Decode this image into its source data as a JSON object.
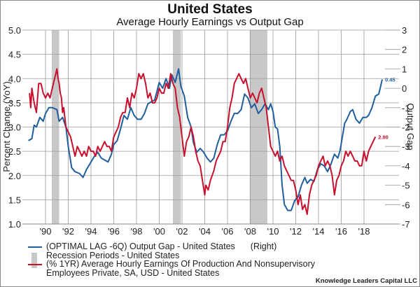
{
  "chart_data": {
    "type": "line",
    "title": "United States",
    "subtitle": "Average Hourly Earnings vs Output Gap",
    "xlabel": "",
    "ylabel": "Percent Change (YoY)",
    "y2label": "Output Gap",
    "x_range": [
      1988.5,
      2020.0
    ],
    "ylim": [
      1.0,
      5.0
    ],
    "y2lim": [
      -7,
      3
    ],
    "yticks": [
      "1.0",
      "1.5",
      "2.0",
      "2.5",
      "3.0",
      "3.5",
      "4.0",
      "4.5",
      "5.0"
    ],
    "y2ticks": [
      "-7",
      "-6",
      "-5",
      "-4",
      "-3",
      "-2",
      "-1",
      "0",
      "1",
      "2",
      "3"
    ],
    "xticks": [
      {
        "year": 1990,
        "label": "'90"
      },
      {
        "year": 1992,
        "label": "'92"
      },
      {
        "year": 1994,
        "label": "'94"
      },
      {
        "year": 1996,
        "label": "'96"
      },
      {
        "year": 1998,
        "label": "'98"
      },
      {
        "year": 2000,
        "label": "'00"
      },
      {
        "year": 2002,
        "label": "'02"
      },
      {
        "year": 2004,
        "label": "'04"
      },
      {
        "year": 2006,
        "label": "'06"
      },
      {
        "year": 2008,
        "label": "'08"
      },
      {
        "year": 2010,
        "label": "'10"
      },
      {
        "year": 2012,
        "label": "'12"
      },
      {
        "year": 2014,
        "label": "'14"
      },
      {
        "year": 2016,
        "label": "'16"
      },
      {
        "year": 2018,
        "label": "'18"
      }
    ],
    "grid": true,
    "recessions": [
      [
        1990.55,
        1991.2
      ],
      [
        2001.2,
        2001.9
      ],
      [
        2007.95,
        2009.5
      ]
    ],
    "series": [
      {
        "name": "(OPTIMAL LAG -6Q) Output Gap - United States",
        "axis": "right",
        "color": "#1f5f9e",
        "end_label": "0.45",
        "points": [
          [
            1988.5,
            -2.7
          ],
          [
            1988.8,
            -2.6
          ],
          [
            1989.0,
            -1.9
          ],
          [
            1989.2,
            -2.0
          ],
          [
            1989.5,
            -1.5
          ],
          [
            1989.8,
            -1.7
          ],
          [
            1990.0,
            -1.3
          ],
          [
            1990.3,
            -1.0
          ],
          [
            1990.6,
            -1.0
          ],
          [
            1991.0,
            -1.1
          ],
          [
            1991.2,
            -1.7
          ],
          [
            1991.5,
            -1.5
          ],
          [
            1991.8,
            -2.0
          ],
          [
            1992.0,
            -3.0
          ],
          [
            1992.3,
            -4.1
          ],
          [
            1992.6,
            -4.3
          ],
          [
            1993.0,
            -4.4
          ],
          [
            1993.3,
            -4.6
          ],
          [
            1993.6,
            -4.2
          ],
          [
            1994.0,
            -3.8
          ],
          [
            1994.3,
            -3.5
          ],
          [
            1994.6,
            -3.3
          ],
          [
            1994.9,
            -3.6
          ],
          [
            1995.2,
            -3.7
          ],
          [
            1995.5,
            -3.8
          ],
          [
            1995.8,
            -3.4
          ],
          [
            1996.0,
            -2.9
          ],
          [
            1996.3,
            -2.7
          ],
          [
            1996.6,
            -2.1
          ],
          [
            1996.9,
            -1.4
          ],
          [
            1997.2,
            -1.6
          ],
          [
            1997.5,
            -1.0
          ],
          [
            1997.8,
            -1.4
          ],
          [
            1998.1,
            -1.6
          ],
          [
            1998.4,
            -1.6
          ],
          [
            1998.7,
            -1.3
          ],
          [
            1999.0,
            -0.8
          ],
          [
            1999.3,
            -0.7
          ],
          [
            1999.6,
            -0.6
          ],
          [
            2000.0,
            0.3
          ],
          [
            2000.3,
            0.0
          ],
          [
            2000.6,
            0.5
          ],
          [
            2000.9,
            0.0
          ],
          [
            2001.1,
            0.7
          ],
          [
            2001.4,
            0.3
          ],
          [
            2001.7,
            1.0
          ],
          [
            2001.9,
            0.1
          ],
          [
            2002.2,
            -0.4
          ],
          [
            2002.5,
            -1.5
          ],
          [
            2002.8,
            -2.0
          ],
          [
            2003.0,
            -2.8
          ],
          [
            2003.3,
            -3.3
          ],
          [
            2003.6,
            -3.1
          ],
          [
            2003.9,
            -3.3
          ],
          [
            2004.2,
            -3.6
          ],
          [
            2004.5,
            -3.8
          ],
          [
            2004.8,
            -3.6
          ],
          [
            2005.1,
            -2.9
          ],
          [
            2005.4,
            -2.4
          ],
          [
            2005.7,
            -2.4
          ],
          [
            2006.0,
            -2.2
          ],
          [
            2006.3,
            -1.7
          ],
          [
            2006.6,
            -1.3
          ],
          [
            2006.9,
            -1.3
          ],
          [
            2007.2,
            -1.1
          ],
          [
            2007.5,
            -0.3
          ],
          [
            2007.8,
            -0.5
          ],
          [
            2008.1,
            -1.0
          ],
          [
            2008.4,
            -0.8
          ],
          [
            2008.7,
            -1.3
          ],
          [
            2009.0,
            -1.1
          ],
          [
            2009.3,
            -0.8
          ],
          [
            2009.6,
            -1.1
          ],
          [
            2009.8,
            -0.8
          ],
          [
            2010.0,
            -1.2
          ],
          [
            2010.2,
            -2.0
          ],
          [
            2010.4,
            -2.1
          ],
          [
            2010.6,
            -3.0
          ],
          [
            2010.8,
            -5.0
          ],
          [
            2011.0,
            -6.0
          ],
          [
            2011.3,
            -6.3
          ],
          [
            2011.6,
            -6.3
          ],
          [
            2011.9,
            -5.8
          ],
          [
            2012.2,
            -5.6
          ],
          [
            2012.5,
            -5.0
          ],
          [
            2012.8,
            -4.6
          ],
          [
            2013.0,
            -4.9
          ],
          [
            2013.3,
            -4.7
          ],
          [
            2013.6,
            -4.8
          ],
          [
            2013.9,
            -4.2
          ],
          [
            2014.2,
            -3.9
          ],
          [
            2014.5,
            -4.0
          ],
          [
            2014.8,
            -4.3
          ],
          [
            2015.1,
            -3.9
          ],
          [
            2015.4,
            -3.4
          ],
          [
            2015.7,
            -3.6
          ],
          [
            2015.9,
            -3.2
          ],
          [
            2016.1,
            -2.5
          ],
          [
            2016.3,
            -1.8
          ],
          [
            2016.5,
            -1.6
          ],
          [
            2016.8,
            -1.2
          ],
          [
            2017.0,
            -1.1
          ],
          [
            2017.3,
            -1.6
          ],
          [
            2017.6,
            -1.8
          ],
          [
            2017.9,
            -1.5
          ],
          [
            2018.2,
            -1.5
          ],
          [
            2018.4,
            -1.4
          ],
          [
            2018.7,
            -1.0
          ],
          [
            2019.0,
            -0.4
          ],
          [
            2019.3,
            -0.3
          ],
          [
            2019.6,
            0.45
          ]
        ]
      },
      {
        "name": "(% 1YR) Average Hourly Earnings Of Production And Nonsupervisory Employees Private, SA, USD - United States",
        "axis": "left",
        "color": "#c8102e",
        "end_label": "2.80",
        "points": [
          [
            1988.6,
            3.7
          ],
          [
            1988.7,
            3.4
          ],
          [
            1988.8,
            3.8
          ],
          [
            1989.0,
            3.5
          ],
          [
            1989.2,
            3.3
          ],
          [
            1989.4,
            3.9
          ],
          [
            1989.6,
            3.9
          ],
          [
            1989.8,
            3.7
          ],
          [
            1990.0,
            3.6
          ],
          [
            1990.2,
            3.7
          ],
          [
            1990.4,
            3.6
          ],
          [
            1990.6,
            3.8
          ],
          [
            1990.8,
            4.0
          ],
          [
            1991.0,
            4.2
          ],
          [
            1991.1,
            4.0
          ],
          [
            1991.2,
            3.9
          ],
          [
            1991.3,
            3.7
          ],
          [
            1991.4,
            3.6
          ],
          [
            1991.5,
            3.3
          ],
          [
            1991.6,
            3.4
          ],
          [
            1991.8,
            3.0
          ],
          [
            1992.0,
            2.9
          ],
          [
            1992.2,
            2.8
          ],
          [
            1992.4,
            2.6
          ],
          [
            1992.6,
            2.4
          ],
          [
            1992.8,
            2.6
          ],
          [
            1993.0,
            2.5
          ],
          [
            1993.2,
            2.4
          ],
          [
            1993.4,
            2.5
          ],
          [
            1993.6,
            2.4
          ],
          [
            1993.8,
            2.6
          ],
          [
            1994.0,
            2.5
          ],
          [
            1994.2,
            2.5
          ],
          [
            1994.4,
            2.4
          ],
          [
            1994.6,
            2.6
          ],
          [
            1994.8,
            2.5
          ],
          [
            1995.0,
            2.6
          ],
          [
            1995.2,
            2.7
          ],
          [
            1995.4,
            2.6
          ],
          [
            1995.6,
            2.6
          ],
          [
            1995.8,
            2.5
          ],
          [
            1996.0,
            2.8
          ],
          [
            1996.2,
            2.9
          ],
          [
            1996.4,
            3.0
          ],
          [
            1996.6,
            3.2
          ],
          [
            1996.8,
            3.3
          ],
          [
            1997.0,
            3.3
          ],
          [
            1997.2,
            3.6
          ],
          [
            1997.4,
            3.4
          ],
          [
            1997.6,
            3.7
          ],
          [
            1997.8,
            3.6
          ],
          [
            1998.0,
            3.8
          ],
          [
            1998.2,
            4.1
          ],
          [
            1998.4,
            4.0
          ],
          [
            1998.6,
            4.1
          ],
          [
            1998.8,
            3.9
          ],
          [
            1999.0,
            3.6
          ],
          [
            1999.2,
            3.7
          ],
          [
            1999.4,
            3.5
          ],
          [
            1999.6,
            3.5
          ],
          [
            1999.8,
            3.6
          ],
          [
            2000.0,
            3.8
          ],
          [
            2000.2,
            3.7
          ],
          [
            2000.4,
            3.7
          ],
          [
            2000.6,
            3.9
          ],
          [
            2000.8,
            3.8
          ],
          [
            2001.0,
            4.1
          ],
          [
            2001.2,
            3.9
          ],
          [
            2001.4,
            3.8
          ],
          [
            2001.6,
            3.4
          ],
          [
            2001.8,
            3.2
          ],
          [
            2002.0,
            2.8
          ],
          [
            2002.2,
            2.4
          ],
          [
            2002.4,
            2.7
          ],
          [
            2002.6,
            2.8
          ],
          [
            2002.8,
            3.0
          ],
          [
            2003.0,
            2.8
          ],
          [
            2003.2,
            2.5
          ],
          [
            2003.4,
            2.3
          ],
          [
            2003.6,
            2.2
          ],
          [
            2003.8,
            1.9
          ],
          [
            2004.0,
            1.6
          ],
          [
            2004.1,
            1.8
          ],
          [
            2004.3,
            1.7
          ],
          [
            2004.5,
            1.9
          ],
          [
            2004.8,
            2.1
          ],
          [
            2005.0,
            2.3
          ],
          [
            2005.2,
            2.4
          ],
          [
            2005.4,
            2.5
          ],
          [
            2005.6,
            2.7
          ],
          [
            2005.8,
            2.7
          ],
          [
            2006.0,
            3.0
          ],
          [
            2006.2,
            3.4
          ],
          [
            2006.4,
            3.6
          ],
          [
            2006.6,
            3.9
          ],
          [
            2006.8,
            4.0
          ],
          [
            2007.0,
            4.1
          ],
          [
            2007.2,
            4.0
          ],
          [
            2007.4,
            3.9
          ],
          [
            2007.6,
            4.0
          ],
          [
            2007.8,
            3.8
          ],
          [
            2008.0,
            3.6
          ],
          [
            2008.2,
            3.7
          ],
          [
            2008.4,
            3.6
          ],
          [
            2008.6,
            3.5
          ],
          [
            2008.8,
            3.7
          ],
          [
            2009.0,
            3.8
          ],
          [
            2009.2,
            3.6
          ],
          [
            2009.4,
            3.4
          ],
          [
            2009.6,
            3.0
          ],
          [
            2009.8,
            2.6
          ],
          [
            2010.0,
            2.5
          ],
          [
            2010.2,
            2.4
          ],
          [
            2010.4,
            2.5
          ],
          [
            2010.6,
            2.3
          ],
          [
            2010.8,
            2.4
          ],
          [
            2011.0,
            2.2
          ],
          [
            2011.2,
            2.1
          ],
          [
            2011.4,
            2.0
          ],
          [
            2011.6,
            1.9
          ],
          [
            2011.8,
            1.9
          ],
          [
            2012.0,
            1.7
          ],
          [
            2012.2,
            1.4
          ],
          [
            2012.4,
            1.6
          ],
          [
            2012.6,
            1.3
          ],
          [
            2012.8,
            1.4
          ],
          [
            2013.0,
            1.2
          ],
          [
            2013.2,
            1.6
          ],
          [
            2013.4,
            1.8
          ],
          [
            2013.6,
            1.9
          ],
          [
            2013.8,
            2.0
          ],
          [
            2014.0,
            2.2
          ],
          [
            2014.2,
            2.3
          ],
          [
            2014.4,
            2.4
          ],
          [
            2014.6,
            2.2
          ],
          [
            2014.8,
            2.3
          ],
          [
            2015.0,
            2.2
          ],
          [
            2015.2,
            2.0
          ],
          [
            2015.4,
            1.6
          ],
          [
            2015.6,
            1.9
          ],
          [
            2015.8,
            2.0
          ],
          [
            2016.0,
            2.2
          ],
          [
            2016.2,
            2.3
          ],
          [
            2016.4,
            2.5
          ],
          [
            2016.6,
            2.4
          ],
          [
            2016.8,
            2.5
          ],
          [
            2017.0,
            2.4
          ],
          [
            2017.2,
            2.3
          ],
          [
            2017.4,
            2.3
          ],
          [
            2017.6,
            2.2
          ],
          [
            2017.8,
            2.2
          ],
          [
            2018.0,
            2.5
          ],
          [
            2018.2,
            2.3
          ],
          [
            2018.4,
            2.5
          ],
          [
            2018.6,
            2.6
          ],
          [
            2018.8,
            2.7
          ],
          [
            2019.0,
            2.8
          ]
        ]
      }
    ],
    "legend": {
      "placement": "bottom",
      "entries": [
        {
          "label": "(OPTIMAL LAG -6Q) Output Gap - United States",
          "note": "(Right)",
          "type": "line",
          "color": "#1f5f9e"
        },
        {
          "label": "Recession Periods - United States",
          "type": "bar",
          "color": "#c8c8c8"
        },
        {
          "label": "(% 1YR) Average Hourly Earnings Of Production And Nonsupervisory",
          "label2": "Employees Private, SA, USD - United States",
          "type": "line",
          "color": "#c8102e"
        }
      ]
    },
    "source": "Knowledge Leaders Capital LLC"
  }
}
